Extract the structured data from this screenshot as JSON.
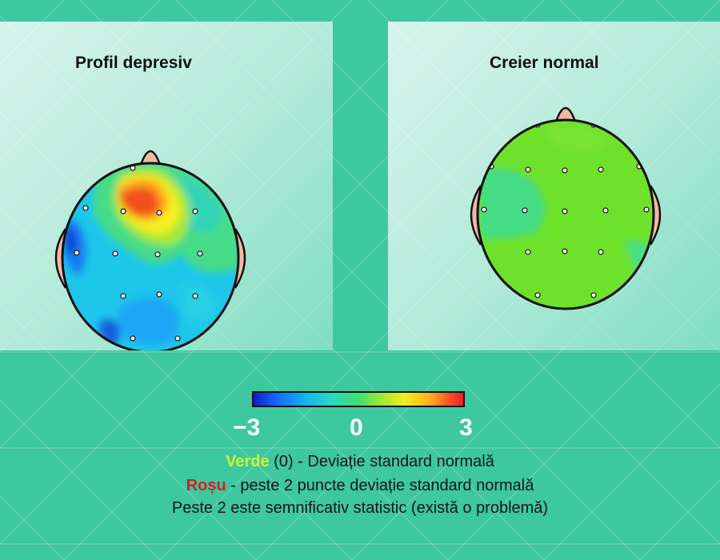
{
  "panels": {
    "left": {
      "title": "Profil depresiv"
    },
    "right": {
      "title": "Creier normal"
    }
  },
  "colorbar": {
    "ticks": [
      "−3",
      "0",
      "3"
    ],
    "colors": [
      "#0a20c8",
      "#1470ff",
      "#12b6f2",
      "#28d8c4",
      "#40e070",
      "#a8e830",
      "#f2ee22",
      "#ffb018",
      "#ff5420",
      "#e81e2a"
    ]
  },
  "legend": {
    "line1": {
      "keyword": "Verde",
      "rest": " (0) - Deviație standard normală"
    },
    "line2": {
      "keyword": "Roșu",
      "rest": " - peste 2 puncte deviație standard normală"
    },
    "line3": "Peste 2 este semnificativ statistic (există o problemă)"
  },
  "theme": {
    "background": "#3ec8a0",
    "green": "#d4ee2e",
    "red": "#d41e26"
  }
}
